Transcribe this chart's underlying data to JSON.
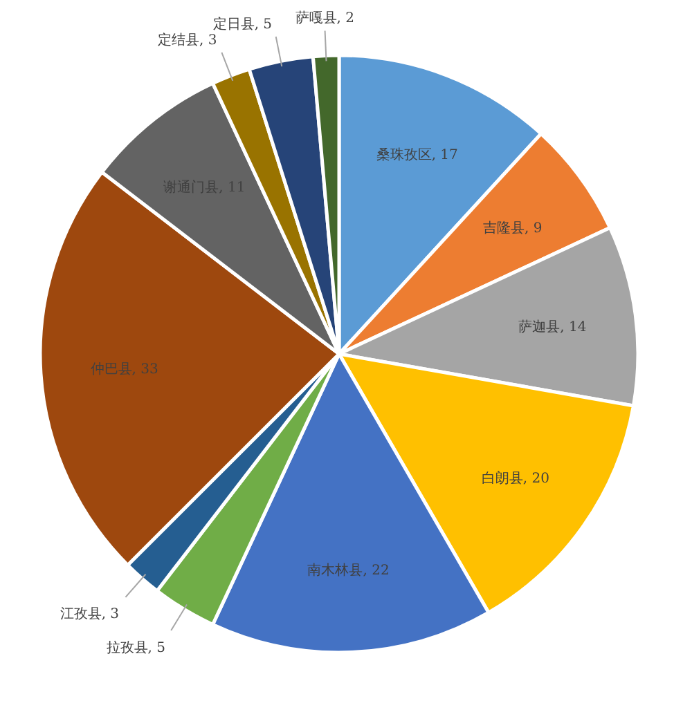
{
  "chart_data": {
    "type": "pie",
    "legend": false,
    "categories": [
      "桑珠孜区",
      "吉隆县",
      "萨迦县",
      "白朗县",
      "南木林县",
      "拉孜县",
      "江孜县",
      "仲巴县",
      "谢通门县",
      "定结县",
      "定日县",
      "萨嘎县"
    ],
    "values": [
      17,
      9,
      14,
      20,
      22,
      5,
      3,
      33,
      11,
      3,
      5,
      2
    ],
    "value_labels": [
      ", 17",
      ", 9",
      ", 14",
      ", 20",
      ", 22",
      ", 5",
      ", 3",
      ", 33",
      ", 11",
      ", 3",
      ", 5",
      ", 2"
    ],
    "colors": [
      "#5b9bd5",
      "#ed7d31",
      "#a5a5a5",
      "#ffc000",
      "#4472c4",
      "#70ad47",
      "#255e91",
      "#9e480e",
      "#636363",
      "#997300",
      "#264478",
      "#43682b"
    ]
  }
}
